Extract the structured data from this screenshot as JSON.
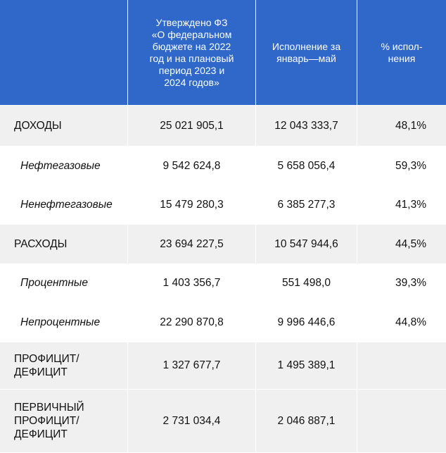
{
  "table": {
    "headers": [
      "",
      "Утверждено ФЗ «О федеральном бюджете на 2022 год и на плановый период 2023 и 2024 годов»",
      "Исполнение за январь—май",
      "% исполнения"
    ],
    "header_lines": {
      "law": [
        "Утверждено ФЗ",
        "«О федеральном",
        "бюджете на 2022",
        "год и на плановый",
        "период 2023 и",
        "2024 годов»"
      ],
      "exec": [
        "Исполнение за",
        "январь—май"
      ],
      "pct": [
        "% испол-",
        "нения"
      ]
    },
    "rows": [
      {
        "label": "ДОХОДЫ",
        "approved": "25 021 905,1",
        "executed": "12 043 333,7",
        "percent": "48,1%"
      },
      {
        "label": "Нефтегазовые",
        "approved": "9 542 624,8",
        "executed": "5 658 056,4",
        "percent": "59,3%"
      },
      {
        "label": "Ненефтегазовые",
        "approved": "15 479 280,3",
        "executed": "6 385 277,3",
        "percent": "41,3%"
      },
      {
        "label": "РАСХОДЫ",
        "approved": "23 694 227,5",
        "executed": "10 547 944,6",
        "percent": "44,5%"
      },
      {
        "label": "Процентные",
        "approved": "1 403 356,7",
        "executed": "551 498,0",
        "percent": "39,3%"
      },
      {
        "label": "Непроцентные",
        "approved": "22 290 870,8",
        "executed": "9 996 446,6",
        "percent": "44,8%"
      },
      {
        "label": "ПРОФИЦИТ/ ДЕФИЦИТ",
        "label_lines": [
          "ПРОФИЦИТ/",
          "ДЕФИЦИТ"
        ],
        "approved": "1 327 677,7",
        "executed": "1 495 389,1",
        "percent": ""
      },
      {
        "label": "ПЕРВИЧНЫЙ ПРОФИЦИТ/ ДЕФИЦИТ",
        "label_lines": [
          "ПЕРВИЧНЫЙ",
          "ПРОФИЦИТ/",
          "ДЕФИЦИТ"
        ],
        "approved": "2 731 034,4",
        "executed": "2 046 887,1",
        "percent": ""
      }
    ]
  }
}
